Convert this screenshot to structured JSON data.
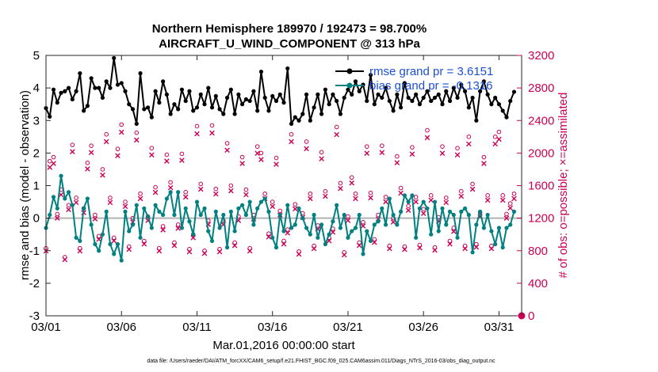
{
  "chart_data": {
    "type": "line",
    "title_line1": "Northern Hemisphere 189970 / 192473 = 98.700%",
    "title_line2": "AIRCRAFT_U_WIND_COMPONENT @ 313 hPa",
    "xlabel": "Mar.01,2016 00:00:00 start",
    "ylabel": "rmse and bias (model - observation)",
    "y2label": "# of obs: o=possible; ×=assimilated",
    "footnote": "data file: /Users/raeder/DAI/ATM_forcXX/CAM6_setup/f.e21.FHIST_BGC.f09_025.CAM6assim.011/Diags_NTrS_2016-03/obs_diag_output.nc",
    "xlim": [
      0,
      31.5
    ],
    "ylim": [
      -3,
      5
    ],
    "y2lim": [
      0,
      3200
    ],
    "xticks": [
      {
        "v": 0,
        "label": "03/01"
      },
      {
        "v": 5,
        "label": "03/06"
      },
      {
        "v": 10,
        "label": "03/11"
      },
      {
        "v": 15,
        "label": "03/16"
      },
      {
        "v": 20,
        "label": "03/21"
      },
      {
        "v": 25,
        "label": "03/26"
      },
      {
        "v": 30,
        "label": "03/31"
      }
    ],
    "yticks": [
      {
        "v": -3,
        "label": "-3"
      },
      {
        "v": -2,
        "label": "-2"
      },
      {
        "v": -1,
        "label": "-1"
      },
      {
        "v": 0,
        "label": "0"
      },
      {
        "v": 1,
        "label": "1"
      },
      {
        "v": 2,
        "label": "2"
      },
      {
        "v": 3,
        "label": "3"
      },
      {
        "v": 4,
        "label": "4"
      },
      {
        "v": 5,
        "label": "5"
      }
    ],
    "y2ticks": [
      {
        "v": 0,
        "label": "0"
      },
      {
        "v": 400,
        "label": "400"
      },
      {
        "v": 800,
        "label": "800"
      },
      {
        "v": 1200,
        "label": "1200"
      },
      {
        "v": 1600,
        "label": "1600"
      },
      {
        "v": 2000,
        "label": "2000"
      },
      {
        "v": 2400,
        "label": "2400"
      },
      {
        "v": 2800,
        "label": "2800"
      },
      {
        "v": 3200,
        "label": "3200"
      }
    ],
    "legend": [
      {
        "label": "rmse grand pr = 3.6151",
        "color": "#000000"
      },
      {
        "label": "bias grand pr = -0.1316",
        "color": "#008080"
      }
    ],
    "colors": {
      "rmse": "#000000",
      "bias": "#008080",
      "obs": "#cc0055",
      "zero": "#b3b3b3"
    },
    "rmse_keys": [
      [
        0.0,
        3.38
      ],
      [
        0.25,
        3.12
      ],
      [
        0.5,
        3.95
      ],
      [
        0.75,
        3.55
      ],
      [
        1.0,
        3.85
      ],
      [
        1.25,
        3.9
      ],
      [
        1.5,
        4.0
      ],
      [
        1.75,
        3.65
      ],
      [
        2.0,
        3.9
      ],
      [
        2.25,
        4.45
      ],
      [
        2.5,
        3.3
      ],
      [
        2.75,
        3.45
      ],
      [
        3.0,
        4.3
      ],
      [
        3.25,
        4.0
      ],
      [
        3.5,
        4.0
      ],
      [
        3.75,
        3.7
      ],
      [
        4.0,
        4.2
      ],
      [
        4.25,
        4.0
      ],
      [
        4.5,
        4.92
      ],
      [
        4.75,
        4.1
      ],
      [
        5.0,
        4.15
      ],
      [
        5.25,
        3.9
      ],
      [
        5.5,
        3.5
      ],
      [
        5.75,
        3.35
      ],
      [
        6.0,
        2.9
      ],
      [
        6.25,
        4.45
      ],
      [
        6.5,
        3.35
      ],
      [
        6.75,
        3.4
      ],
      [
        7.0,
        3.1
      ],
      [
        7.25,
        3.9
      ],
      [
        7.5,
        3.55
      ],
      [
        7.75,
        4.2
      ],
      [
        8.0,
        3.8
      ],
      [
        8.25,
        3.2
      ],
      [
        8.5,
        3.5
      ],
      [
        8.75,
        3.35
      ],
      [
        9.0,
        3.95
      ],
      [
        9.25,
        3.6
      ],
      [
        9.5,
        3.9
      ],
      [
        9.75,
        3.3
      ],
      [
        10.0,
        3.4
      ],
      [
        10.25,
        3.8
      ],
      [
        10.5,
        3.5
      ],
      [
        10.75,
        4.0
      ],
      [
        11.0,
        3.4
      ],
      [
        11.25,
        3.75
      ],
      [
        11.5,
        3.35
      ],
      [
        11.75,
        3.2
      ],
      [
        12.0,
        3.7
      ],
      [
        12.25,
        3.95
      ],
      [
        12.5,
        3.2
      ],
      [
        12.75,
        3.8
      ],
      [
        13.0,
        3.5
      ],
      [
        13.25,
        3.65
      ],
      [
        13.5,
        3.6
      ],
      [
        13.75,
        3.9
      ],
      [
        14.0,
        3.3
      ],
      [
        14.25,
        4.5
      ],
      [
        14.5,
        3.7
      ],
      [
        14.75,
        3.3
      ],
      [
        15.0,
        3.75
      ],
      [
        15.25,
        3.6
      ],
      [
        15.5,
        3.8
      ],
      [
        15.75,
        3.55
      ],
      [
        16.0,
        4.6
      ],
      [
        16.25,
        2.9
      ],
      [
        16.5,
        3.1
      ],
      [
        16.75,
        3.0
      ],
      [
        17.0,
        3.2
      ],
      [
        17.25,
        3.8
      ],
      [
        17.5,
        3.0
      ],
      [
        17.75,
        3.4
      ],
      [
        18.0,
        3.8
      ],
      [
        18.25,
        3.2
      ],
      [
        18.5,
        3.95
      ],
      [
        18.75,
        3.5
      ],
      [
        19.0,
        3.8
      ],
      [
        19.25,
        3.6
      ],
      [
        19.5,
        3.2
      ],
      [
        19.75,
        3.7
      ],
      [
        20.0,
        3.95
      ],
      [
        20.25,
        3.8
      ],
      [
        20.5,
        4.2
      ],
      [
        20.75,
        3.9
      ],
      [
        21.0,
        4.1
      ],
      [
        21.25,
        3.6
      ],
      [
        21.5,
        4.4
      ],
      [
        21.75,
        3.5
      ],
      [
        22.0,
        3.8
      ],
      [
        22.25,
        3.7
      ],
      [
        22.5,
        4.0
      ],
      [
        22.75,
        3.6
      ],
      [
        23.0,
        3.3
      ],
      [
        23.25,
        3.8
      ],
      [
        23.5,
        3.4
      ],
      [
        23.75,
        4.15
      ],
      [
        24.0,
        3.7
      ],
      [
        24.25,
        3.6
      ],
      [
        24.5,
        3.8
      ],
      [
        24.75,
        3.5
      ],
      [
        25.0,
        3.7
      ],
      [
        25.25,
        3.9
      ],
      [
        25.5,
        3.6
      ],
      [
        25.75,
        3.7
      ],
      [
        26.0,
        3.8
      ],
      [
        26.25,
        3.5
      ],
      [
        26.5,
        3.9
      ],
      [
        26.75,
        3.6
      ],
      [
        27.0,
        4.0
      ],
      [
        27.25,
        3.7
      ],
      [
        27.5,
        4.1
      ],
      [
        27.75,
        3.9
      ],
      [
        28.0,
        3.4
      ],
      [
        28.25,
        3.7
      ],
      [
        28.5,
        3.0
      ],
      [
        28.75,
        3.9
      ],
      [
        29.0,
        4.2
      ],
      [
        29.25,
        3.8
      ],
      [
        29.5,
        3.5
      ],
      [
        29.75,
        3.7
      ],
      [
        30.0,
        3.5
      ],
      [
        30.25,
        3.3
      ],
      [
        30.5,
        3.1
      ],
      [
        30.75,
        3.6
      ],
      [
        31.0,
        3.88
      ]
    ],
    "bias_keys": [
      [
        0.0,
        -0.3
      ],
      [
        0.25,
        0.1
      ],
      [
        0.5,
        0.65
      ],
      [
        0.75,
        0.3
      ],
      [
        1.0,
        1.3
      ],
      [
        1.25,
        0.6
      ],
      [
        1.5,
        0.8
      ],
      [
        1.75,
        0.4
      ],
      [
        2.0,
        -0.6
      ],
      [
        2.25,
        -0.7
      ],
      [
        2.5,
        0.3
      ],
      [
        2.75,
        0.6
      ],
      [
        3.0,
        -0.2
      ],
      [
        3.25,
        -0.8
      ],
      [
        3.5,
        -1.0
      ],
      [
        3.75,
        -0.5
      ],
      [
        4.0,
        0.2
      ],
      [
        4.25,
        -0.8
      ],
      [
        4.5,
        -1.1
      ],
      [
        4.75,
        -0.8
      ],
      [
        5.0,
        -1.3
      ],
      [
        5.25,
        0.2
      ],
      [
        5.5,
        -0.4
      ],
      [
        5.75,
        -0.2
      ],
      [
        6.0,
        0.4
      ],
      [
        6.25,
        -0.6
      ],
      [
        6.5,
        0.3
      ],
      [
        6.75,
        0.05
      ],
      [
        7.0,
        -0.3
      ],
      [
        7.25,
        0.4
      ],
      [
        7.5,
        0.2
      ],
      [
        7.75,
        0.1
      ],
      [
        8.0,
        0.6
      ],
      [
        8.25,
        0.8
      ],
      [
        8.5,
        0.1
      ],
      [
        8.75,
        0.8
      ],
      [
        9.0,
        -0.3
      ],
      [
        9.25,
        0.3
      ],
      [
        9.5,
        -0.1
      ],
      [
        9.75,
        -0.5
      ],
      [
        10.0,
        0.5
      ],
      [
        10.25,
        0.1
      ],
      [
        10.5,
        0.3
      ],
      [
        10.75,
        -0.4
      ],
      [
        11.0,
        -0.7
      ],
      [
        11.25,
        0.2
      ],
      [
        11.5,
        -0.3
      ],
      [
        11.75,
        0.1
      ],
      [
        12.0,
        -0.9
      ],
      [
        12.25,
        0.2
      ],
      [
        12.5,
        -0.4
      ],
      [
        12.75,
        0.3
      ],
      [
        13.0,
        0.4
      ],
      [
        13.25,
        0.1
      ],
      [
        13.5,
        0.5
      ],
      [
        13.75,
        -0.2
      ],
      [
        14.0,
        0.3
      ],
      [
        14.25,
        0.5
      ],
      [
        14.5,
        0.6
      ],
      [
        14.75,
        0.2
      ],
      [
        15.0,
        -0.6
      ],
      [
        15.25,
        -0.9
      ],
      [
        15.5,
        0.1
      ],
      [
        15.75,
        -0.4
      ],
      [
        16.0,
        0.4
      ],
      [
        16.25,
        -0.3
      ],
      [
        16.5,
        -0.2
      ],
      [
        16.75,
        0.3
      ],
      [
        17.0,
        0.0
      ],
      [
        17.25,
        -0.3
      ],
      [
        17.5,
        -0.5
      ],
      [
        17.75,
        0.1
      ],
      [
        18.0,
        -0.6
      ],
      [
        18.25,
        -0.2
      ],
      [
        18.5,
        -0.8
      ],
      [
        18.75,
        -0.5
      ],
      [
        19.0,
        -0.1
      ],
      [
        19.25,
        0.4
      ],
      [
        19.5,
        -0.3
      ],
      [
        19.75,
        0.1
      ],
      [
        20.0,
        -0.6
      ],
      [
        20.25,
        -0.4
      ],
      [
        20.5,
        -0.3
      ],
      [
        20.75,
        0.1
      ],
      [
        21.0,
        -1.1
      ],
      [
        21.25,
        -0.4
      ],
      [
        21.5,
        -0.7
      ],
      [
        21.75,
        -0.2
      ],
      [
        22.0,
        -0.1
      ],
      [
        22.25,
        0.3
      ],
      [
        22.5,
        -0.2
      ],
      [
        22.75,
        0.6
      ],
      [
        23.0,
        0.1
      ],
      [
        23.25,
        -0.2
      ],
      [
        23.5,
        0.2
      ],
      [
        23.75,
        0.7
      ],
      [
        24.0,
        0.5
      ],
      [
        24.25,
        0.7
      ],
      [
        24.5,
        -0.6
      ],
      [
        24.75,
        0.3
      ],
      [
        25.0,
        0.5
      ],
      [
        25.25,
        0.3
      ],
      [
        25.5,
        -0.5
      ],
      [
        25.75,
        0.5
      ],
      [
        26.0,
        -0.4
      ],
      [
        26.25,
        0.3
      ],
      [
        26.5,
        -0.2
      ],
      [
        26.75,
        0.2
      ],
      [
        27.0,
        0.1
      ],
      [
        27.25,
        -0.6
      ],
      [
        27.5,
        0.2
      ],
      [
        27.75,
        0.3
      ],
      [
        28.0,
        0.1
      ],
      [
        28.25,
        -1.05
      ],
      [
        28.5,
        -0.2
      ],
      [
        28.75,
        0.2
      ],
      [
        29.0,
        -0.3
      ],
      [
        29.25,
        0.1
      ],
      [
        29.5,
        -0.4
      ],
      [
        29.75,
        -0.8
      ],
      [
        30.0,
        -0.3
      ],
      [
        30.25,
        -0.9
      ],
      [
        30.5,
        -0.3
      ],
      [
        30.75,
        -0.2
      ],
      [
        31.0,
        0.2
      ]
    ],
    "obs_poss_keys": [
      [
        0.0,
        830
      ],
      [
        0.25,
        1900
      ],
      [
        0.5,
        1950
      ],
      [
        0.75,
        1250
      ],
      [
        1.0,
        1550
      ],
      [
        1.25,
        720
      ],
      [
        1.5,
        1360
      ],
      [
        1.75,
        2100
      ],
      [
        2.0,
        1450
      ],
      [
        2.25,
        830
      ],
      [
        2.5,
        1320
      ],
      [
        2.75,
        1880
      ],
      [
        3.0,
        2090
      ],
      [
        3.25,
        1240
      ],
      [
        3.5,
        980
      ],
      [
        3.75,
        1800
      ],
      [
        4.0,
        2230
      ],
      [
        4.25,
        1450
      ],
      [
        4.5,
        960
      ],
      [
        4.75,
        2050
      ],
      [
        5.0,
        2350
      ],
      [
        5.25,
        1400
      ],
      [
        5.5,
        850
      ],
      [
        5.75,
        1200
      ],
      [
        6.0,
        2250
      ],
      [
        6.25,
        1500
      ],
      [
        6.5,
        920
      ],
      [
        6.75,
        1220
      ],
      [
        7.0,
        2060
      ],
      [
        7.25,
        1580
      ],
      [
        7.5,
        830
      ],
      [
        7.75,
        1100
      ],
      [
        8.0,
        1980
      ],
      [
        8.25,
        1640
      ],
      [
        8.5,
        900
      ],
      [
        8.75,
        1120
      ],
      [
        9.0,
        1990
      ],
      [
        9.25,
        1520
      ],
      [
        9.5,
        820
      ],
      [
        9.75,
        1000
      ],
      [
        10.0,
        2330
      ],
      [
        10.25,
        1620
      ],
      [
        10.5,
        800
      ],
      [
        10.75,
        1170
      ],
      [
        11.0,
        2340
      ],
      [
        11.25,
        1560
      ],
      [
        11.5,
        820
      ],
      [
        11.75,
        1170
      ],
      [
        12.0,
        2120
      ],
      [
        12.25,
        1600
      ],
      [
        12.5,
        900
      ],
      [
        12.75,
        1220
      ],
      [
        13.0,
        1950
      ],
      [
        13.25,
        1550
      ],
      [
        13.5,
        830
      ],
      [
        13.75,
        1240
      ],
      [
        14.0,
        2080
      ],
      [
        14.25,
        2000
      ],
      [
        14.5,
        1500
      ],
      [
        14.75,
        1010
      ],
      [
        15.0,
        1400
      ],
      [
        15.25,
        1940
      ],
      [
        15.5,
        1290
      ],
      [
        15.75,
        920
      ],
      [
        16.0,
        1060
      ],
      [
        16.25,
        2230
      ],
      [
        16.5,
        1370
      ],
      [
        16.75,
        790
      ],
      [
        17.0,
        1260
      ],
      [
        17.25,
        2140
      ],
      [
        17.5,
        1500
      ],
      [
        17.75,
        860
      ],
      [
        18.0,
        1110
      ],
      [
        18.25,
        2010
      ],
      [
        18.5,
        1530
      ],
      [
        18.75,
        960
      ],
      [
        19.0,
        1070
      ],
      [
        19.25,
        2320
      ],
      [
        19.5,
        1630
      ],
      [
        19.75,
        780
      ],
      [
        20.0,
        1220
      ],
      [
        20.25,
        1700
      ],
      [
        20.5,
        1500
      ],
      [
        20.75,
        900
      ],
      [
        21.0,
        1150
      ],
      [
        21.25,
        2080
      ],
      [
        21.5,
        1510
      ],
      [
        21.75,
        940
      ],
      [
        22.0,
        1240
      ],
      [
        22.25,
        2090
      ],
      [
        22.5,
        1460
      ],
      [
        22.75,
        860
      ],
      [
        23.0,
        1200
      ],
      [
        23.25,
        1960
      ],
      [
        23.5,
        1570
      ],
      [
        23.75,
        850
      ],
      [
        24.0,
        1350
      ],
      [
        24.25,
        2070
      ],
      [
        24.5,
        1460
      ],
      [
        24.75,
        870
      ],
      [
        25.0,
        1310
      ],
      [
        25.25,
        2280
      ],
      [
        25.5,
        1480
      ],
      [
        25.75,
        840
      ],
      [
        26.0,
        1210
      ],
      [
        26.25,
        2080
      ],
      [
        26.5,
        1450
      ],
      [
        26.75,
        920
      ],
      [
        27.0,
        1080
      ],
      [
        27.25,
        2060
      ],
      [
        27.5,
        1530
      ],
      [
        27.75,
        860
      ],
      [
        28.0,
        2200
      ],
      [
        28.25,
        1620
      ],
      [
        28.5,
        880
      ],
      [
        28.75,
        1270
      ],
      [
        29.0,
        1950
      ],
      [
        29.25,
        1480
      ],
      [
        29.5,
        860
      ],
      [
        29.75,
        2200
      ],
      [
        30.0,
        2260
      ],
      [
        30.25,
        1480
      ],
      [
        30.5,
        1250
      ],
      [
        30.75,
        1380
      ],
      [
        31.0,
        1500
      ]
    ],
    "obs_final": [
      31.5,
      0
    ]
  }
}
